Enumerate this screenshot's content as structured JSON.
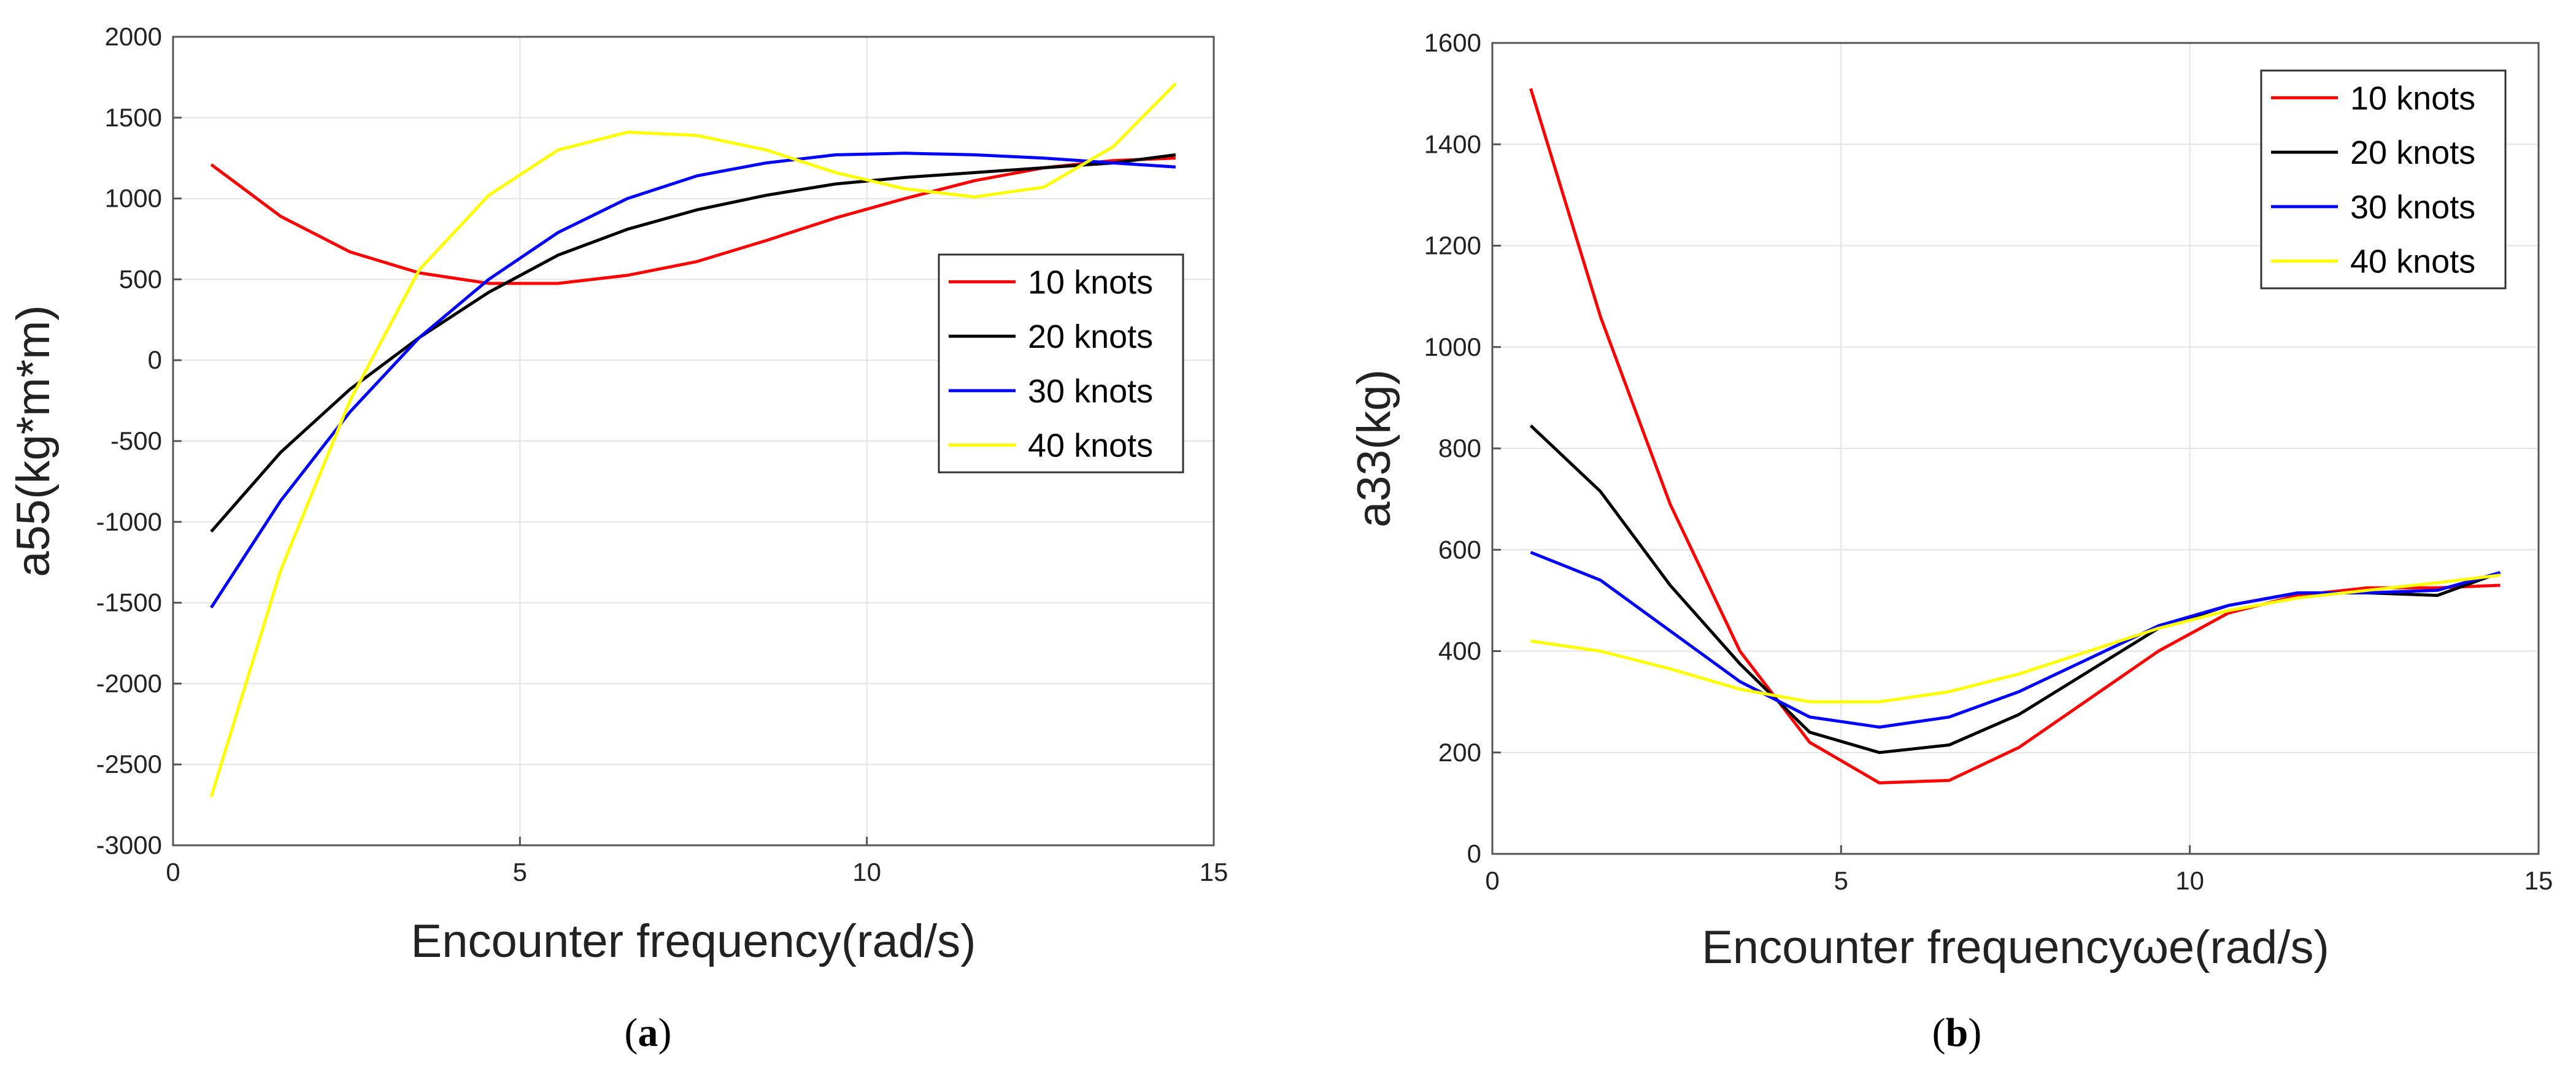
{
  "chart_data": [
    {
      "type": "line",
      "caption": "(a)",
      "caption_letter": "a",
      "title": "",
      "xlabel": "Encounter frequency(rad/s)",
      "ylabel": "a55(kg*m*m)",
      "xlim": [
        0,
        15
      ],
      "ylim": [
        -3000,
        2000
      ],
      "xticks": [
        0,
        5,
        10,
        15
      ],
      "yticks": [
        -3000,
        -2500,
        -2000,
        -1500,
        -1000,
        -500,
        0,
        500,
        1000,
        1500,
        2000
      ],
      "grid": true,
      "legend_position": "right-middle",
      "x": [
        0.55,
        1.55,
        2.55,
        3.55,
        4.55,
        5.55,
        6.55,
        7.55,
        8.55,
        9.55,
        10.55,
        11.55,
        12.55,
        13.55,
        14.45
      ],
      "series": [
        {
          "name": "10 knots",
          "color": "#ff0000",
          "values": [
            1210,
            890,
            670,
            540,
            475,
            475,
            525,
            610,
            740,
            880,
            1000,
            1110,
            1190,
            1235,
            1250
          ]
        },
        {
          "name": "20 knots",
          "color": "#000000",
          "values": [
            -1060,
            -570,
            -180,
            140,
            420,
            650,
            810,
            930,
            1020,
            1090,
            1130,
            1160,
            1190,
            1220,
            1270
          ]
        },
        {
          "name": "30 knots",
          "color": "#0000ff",
          "values": [
            -1530,
            -870,
            -320,
            140,
            500,
            790,
            1000,
            1140,
            1220,
            1270,
            1280,
            1270,
            1250,
            1220,
            1195
          ]
        },
        {
          "name": "40 knots",
          "color": "#ffff00",
          "values": [
            -2700,
            -1300,
            -250,
            560,
            1020,
            1300,
            1410,
            1390,
            1300,
            1160,
            1060,
            1010,
            1070,
            1320,
            1710
          ]
        }
      ]
    },
    {
      "type": "line",
      "caption": "(b)",
      "caption_letter": "b",
      "title": "",
      "xlabel": "Encounter frequencyωe(rad/s)",
      "ylabel": "a33(kg)",
      "xlim": [
        0,
        15
      ],
      "ylim": [
        0,
        1600
      ],
      "xticks": [
        0,
        5,
        10,
        15
      ],
      "yticks": [
        0,
        200,
        400,
        600,
        800,
        1000,
        1200,
        1400,
        1600
      ],
      "grid": true,
      "legend_position": "top-right",
      "x": [
        0.55,
        1.55,
        2.55,
        3.55,
        4.55,
        5.55,
        6.55,
        7.55,
        8.55,
        9.55,
        10.55,
        11.55,
        12.55,
        13.55,
        14.45
      ],
      "series": [
        {
          "name": "10 knots",
          "color": "#ff0000",
          "values": [
            1510,
            1060,
            690,
            400,
            220,
            140,
            145,
            210,
            305,
            400,
            475,
            510,
            525,
            525,
            530
          ]
        },
        {
          "name": "20 knots",
          "color": "#000000",
          "values": [
            845,
            715,
            530,
            375,
            240,
            200,
            215,
            275,
            360,
            445,
            490,
            515,
            515,
            510,
            555
          ]
        },
        {
          "name": "30 knots",
          "color": "#0000ff",
          "values": [
            595,
            540,
            440,
            340,
            270,
            250,
            270,
            320,
            385,
            450,
            490,
            515,
            515,
            520,
            555
          ]
        },
        {
          "name": "40 knots",
          "color": "#ffff00",
          "values": [
            420,
            400,
            365,
            325,
            300,
            300,
            320,
            355,
            400,
            445,
            480,
            505,
            520,
            535,
            550
          ]
        }
      ]
    }
  ]
}
